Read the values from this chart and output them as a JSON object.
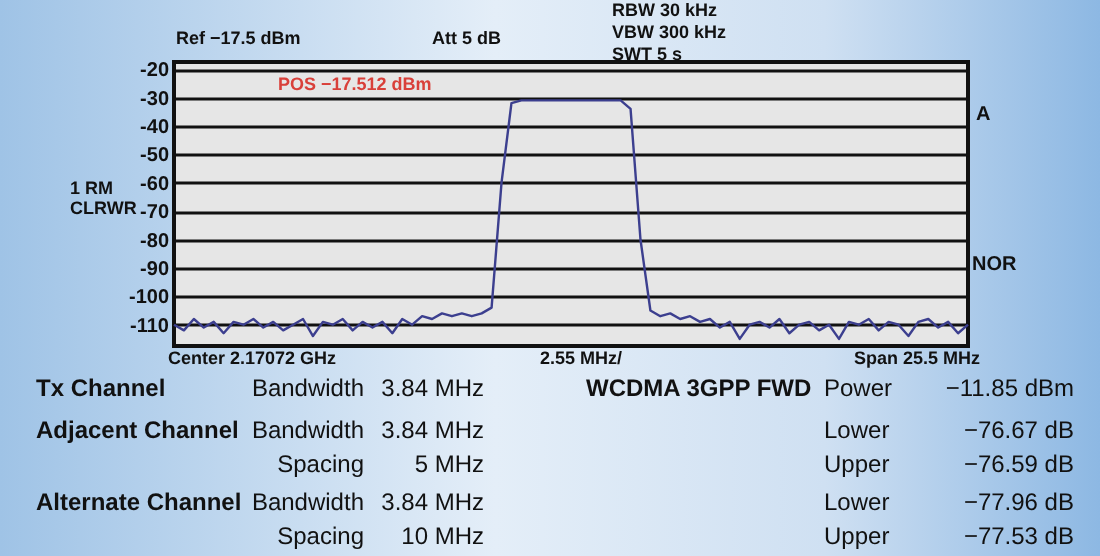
{
  "chart_data": {
    "type": "line",
    "annotations": [
      "Ref −17.5 dBm",
      "Att 5 dB",
      "RBW 30 kHz",
      "VBW 300 kHz",
      "SWT 5 s",
      "POS −17.512 dBm",
      "1 RM CLRWR",
      "A",
      "NOR",
      "Center 2.17072 GHz",
      "2.55 MHz/",
      "Span 25.5 MHz",
      "Tx Channel",
      "Bandwidth",
      "3.84 MHz",
      "WCDMA 3GPP FWD",
      "Power",
      "−11.85 dBm",
      "Adjacent Channel",
      "Bandwidth",
      "3.84 MHz",
      "Lower",
      "−76.67 dB",
      "Spacing",
      "5 MHz",
      "Upper",
      "−76.59 dB",
      "Alternate Channel",
      "Bandwidth",
      "3.84 MHz",
      "Lower",
      "−77.96 dB",
      "Spacing",
      "10 MHz",
      "Upper",
      "−77.53 dB"
    ],
    "categories": [
      null,
      null,
      null,
      null,
      null,
      null,
      null,
      null,
      null,
      null,
      null,
      null,
      null,
      null,
      null,
      null,
      null,
      null,
      null,
      null,
      null,
      null,
      null,
      null,
      null,
      null,
      null,
      null,
      null,
      null,
      null,
      null,
      null,
      null,
      null,
      null,
      null,
      null,
      null,
      null,
      null,
      null,
      null,
      null,
      null,
      null,
      null,
      null,
      null,
      null,
      null,
      null,
      null,
      null,
      null,
      null,
      null,
      null,
      null,
      null,
      null,
      null,
      null,
      null,
      null,
      null,
      null,
      null,
      null,
      null,
      null,
      null,
      null,
      null,
      null,
      null,
      null,
      null,
      null,
      null,
      null
    ],
    "series": [
      {
        "color": "#3c3f8f",
        "values": [
          -110,
          -112,
          -108,
          -111,
          -109,
          -113,
          -109,
          -110,
          -108,
          -111,
          -109,
          -112,
          -110,
          -108,
          -114,
          -109,
          -110,
          -108,
          -112,
          -109,
          -111,
          -109,
          -113,
          -108,
          -110,
          -107,
          -108,
          -106,
          -107,
          -106,
          -107,
          -106,
          -104,
          -60,
          -32,
          -31,
          -31,
          -31,
          -31,
          -31,
          -31,
          -31,
          -31,
          -31,
          -31,
          -31,
          -34,
          -80,
          -105,
          -107,
          -106,
          -108,
          -107,
          -109,
          -108,
          -111,
          -109,
          -115,
          -110,
          -109,
          -111,
          -108,
          -113,
          -110,
          -109,
          -112,
          -110,
          -115,
          -109,
          -110,
          -108,
          -112,
          -109,
          -110,
          -114,
          -109,
          -108,
          -111,
          -109,
          -113,
          -110
        ]
      }
    ],
    "ylim": [
      -117.5,
      -17.5
    ],
    "yticks": [
      -20,
      -30,
      -40,
      -50,
      -60,
      -70,
      -80,
      -90,
      -100,
      -110
    ],
    "grid": "y"
  }
}
